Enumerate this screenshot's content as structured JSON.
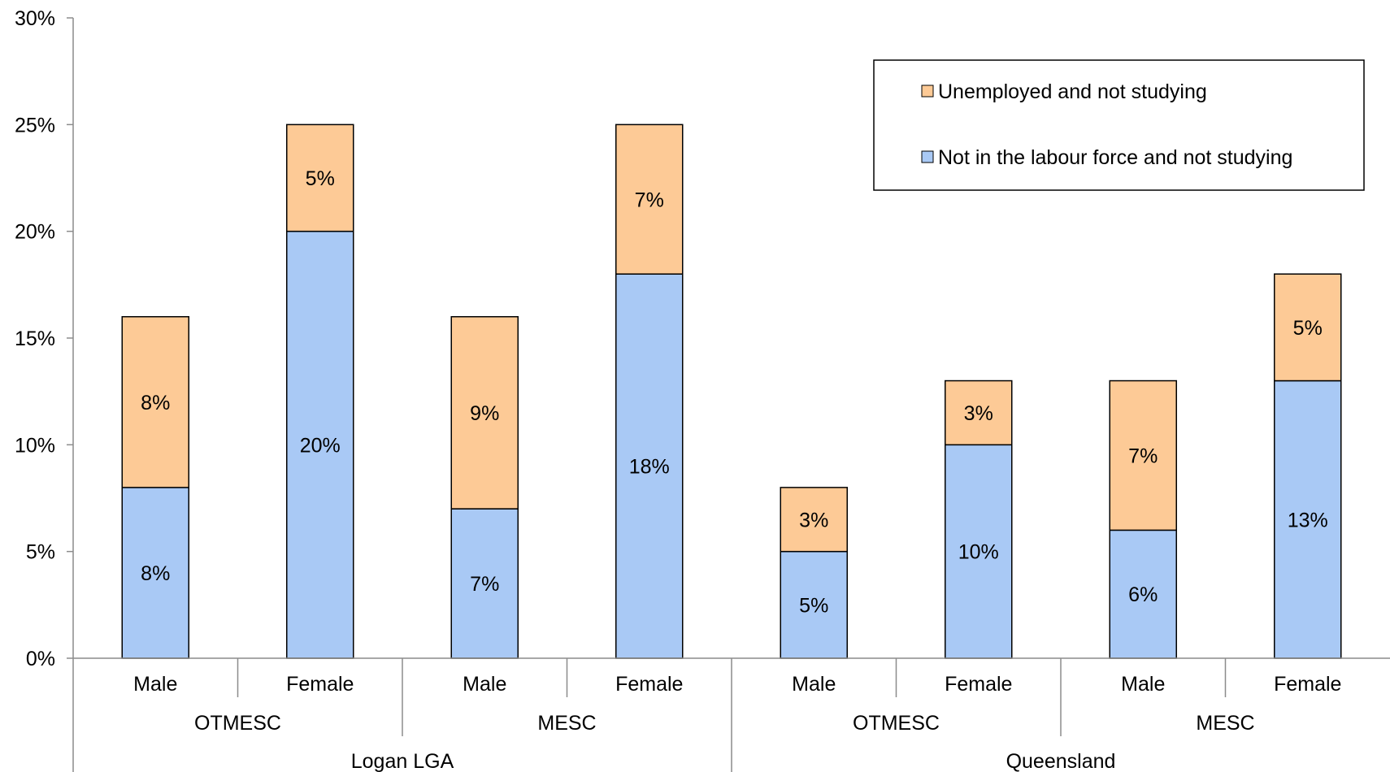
{
  "chart_data": {
    "type": "bar",
    "stacked": true,
    "y_axis": {
      "min": 0,
      "max": 30,
      "step": 5,
      "tick_labels": [
        "0%",
        "5%",
        "10%",
        "15%",
        "20%",
        "25%",
        "30%"
      ]
    },
    "categories": [
      "Male",
      "Female",
      "Male",
      "Female",
      "Male",
      "Female",
      "Male",
      "Female"
    ],
    "group_level_1": [
      "OTMESC",
      "MESC",
      "OTMESC",
      "MESC"
    ],
    "group_level_2": [
      "Logan LGA",
      "Queensland"
    ],
    "series": [
      {
        "name": "Not in the labour force and not studying",
        "color": "#a9c9f5",
        "values": [
          8,
          20,
          7,
          18,
          5,
          10,
          6,
          13
        ],
        "labels": [
          "8%",
          "20%",
          "7%",
          "18%",
          "5%",
          "10%",
          "6%",
          "13%"
        ]
      },
      {
        "name": "Unemployed and not studying",
        "color": "#fdca96",
        "values": [
          8,
          5,
          9,
          7,
          3,
          3,
          7,
          5
        ],
        "labels": [
          "8%",
          "5%",
          "9%",
          "7%",
          "3%",
          "3%",
          "7%",
          "5%"
        ]
      }
    ],
    "legend": {
      "position": "top-right",
      "entries": [
        "Unemployed and not studying",
        "Not in the labour force and not studying"
      ]
    },
    "grid": false
  }
}
